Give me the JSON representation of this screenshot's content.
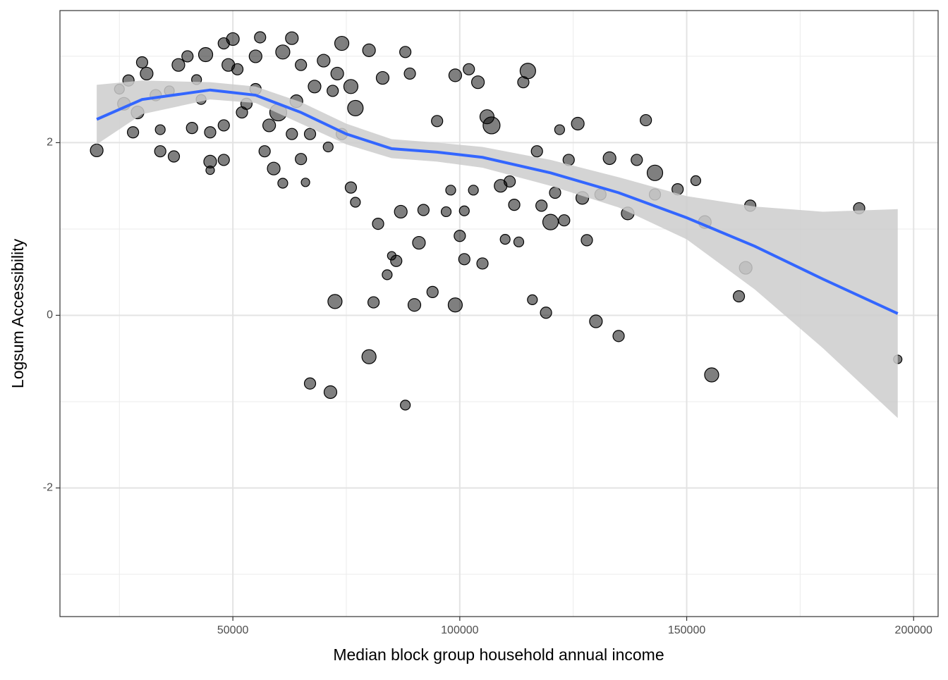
{
  "chart_data": {
    "type": "scatter",
    "x_label": "Median block group household annual income",
    "y_label": "Logsum Accessibility",
    "xlim": [
      11900,
      205400
    ],
    "ylim": [
      -3.49,
      3.53
    ],
    "xticks": [
      50000,
      100000,
      150000,
      200000
    ],
    "yticks": [
      -2,
      0,
      2
    ],
    "x_minor_grid": [
      25000,
      75000,
      125000,
      175000
    ],
    "y_minor_grid": [
      -3,
      -1,
      1,
      3
    ],
    "grid": true,
    "point_color": "#000000",
    "x": [
      20000,
      25000,
      26000,
      27000,
      28000,
      29000,
      30000,
      31000,
      33000,
      34000,
      34000,
      36000,
      37000,
      38000,
      40000,
      41000,
      42000,
      43000,
      44000,
      45000,
      45000,
      45000,
      48000,
      48000,
      48000,
      49000,
      50000,
      51000,
      52000,
      53000,
      55000,
      55000,
      56000,
      57000,
      58000,
      59000,
      60000,
      61000,
      61000,
      63000,
      63000,
      64000,
      65000,
      65000,
      66000,
      67000,
      68000,
      70000,
      71000,
      72000,
      73000,
      74000,
      74000,
      76000,
      77000,
      67000,
      71500,
      72500,
      76000,
      77000,
      80000,
      80000,
      81000,
      82000,
      83000,
      84000,
      85000,
      86000,
      87000,
      88000,
      88000,
      89000,
      90000,
      91000,
      92000,
      94000,
      95000,
      97000,
      98000,
      99000,
      99000,
      100000,
      101000,
      101000,
      102000,
      103000,
      104000,
      105000,
      106000,
      107000,
      109000,
      110000,
      111000,
      112000,
      113000,
      114000,
      115000,
      116000,
      117000,
      118000,
      119000,
      120000,
      121000,
      122000,
      123000,
      124000,
      126000,
      127000,
      128000,
      130000,
      131000,
      133000,
      135000,
      137000,
      139000,
      141000,
      143000,
      143000,
      148000,
      152000,
      154000,
      155500,
      161500,
      163000,
      164000,
      188000,
      196500
    ],
    "values": [
      1.91,
      2.62,
      2.45,
      2.72,
      2.12,
      2.35,
      2.93,
      2.8,
      2.55,
      2.15,
      1.9,
      2.6,
      1.84,
      2.9,
      3.0,
      2.17,
      2.73,
      2.5,
      3.02,
      1.78,
      2.12,
      1.68,
      2.2,
      1.8,
      3.15,
      2.9,
      3.2,
      2.85,
      2.35,
      2.45,
      3.0,
      2.62,
      3.22,
      1.9,
      2.2,
      1.7,
      2.35,
      3.05,
      1.53,
      3.21,
      2.1,
      2.48,
      1.81,
      2.9,
      1.54,
      2.1,
      2.65,
      2.95,
      1.95,
      2.6,
      2.8,
      2.1,
      3.15,
      2.65,
      2.4,
      -0.79,
      -0.89,
      0.16,
      1.48,
      1.31,
      3.07,
      -0.48,
      0.15,
      1.06,
      2.75,
      0.47,
      0.69,
      0.63,
      1.2,
      3.05,
      -1.04,
      2.8,
      0.12,
      0.84,
      1.22,
      0.27,
      2.25,
      1.2,
      1.45,
      2.78,
      0.12,
      0.92,
      0.65,
      1.21,
      2.85,
      1.45,
      2.7,
      0.6,
      2.3,
      2.2,
      1.5,
      0.88,
      1.55,
      1.28,
      0.85,
      2.7,
      2.83,
      0.18,
      1.9,
      1.27,
      0.03,
      1.08,
      1.42,
      2.15,
      1.1,
      1.8,
      2.22,
      1.36,
      0.87,
      -0.07,
      1.4,
      1.82,
      -0.24,
      1.18,
      1.8,
      2.26,
      1.65,
      1.4,
      1.46,
      1.56,
      1.08,
      -0.69,
      0.22,
      0.55,
      1.27,
      1.24,
      -0.51
    ],
    "sizes": [
      9,
      7,
      9,
      8,
      8,
      9,
      8,
      9,
      8,
      7,
      8,
      7,
      8,
      9,
      8,
      8,
      7,
      7,
      10,
      9,
      8,
      6,
      8,
      8,
      8,
      9,
      9,
      8,
      8,
      8,
      9,
      8,
      8,
      8,
      9,
      9,
      12,
      10,
      7,
      9,
      8,
      9,
      8,
      8,
      6,
      8,
      9,
      9,
      7,
      8,
      9,
      8,
      10,
      10,
      11,
      8,
      9,
      10,
      8,
      7,
      9,
      10,
      8,
      8,
      9,
      7,
      6,
      8,
      9,
      8,
      7,
      8,
      9,
      9,
      8,
      8,
      8,
      7,
      7,
      9,
      10,
      8,
      8,
      7,
      8,
      7,
      9,
      8,
      10,
      12,
      9,
      7,
      8,
      8,
      7,
      8,
      11,
      7,
      8,
      8,
      8,
      11,
      8,
      7,
      8,
      8,
      9,
      9,
      8,
      9,
      8,
      9,
      8,
      9,
      8,
      8,
      11,
      8,
      8,
      7,
      9,
      10,
      8,
      9,
      8,
      8,
      6
    ],
    "smooth": {
      "color": "#3366ff",
      "band_color": "#cccccc",
      "x": [
        20000,
        30000,
        45000,
        55000,
        65000,
        75000,
        85000,
        95000,
        105000,
        120000,
        135000,
        150000,
        165000,
        180000,
        196500
      ],
      "values": [
        2.27,
        2.5,
        2.61,
        2.55,
        2.35,
        2.1,
        1.93,
        1.89,
        1.83,
        1.65,
        1.42,
        1.13,
        0.8,
        0.42,
        0.02
      ],
      "lower": [
        1.98,
        2.33,
        2.5,
        2.46,
        2.22,
        1.98,
        1.82,
        1.78,
        1.71,
        1.5,
        1.25,
        0.88,
        0.3,
        -0.38,
        -1.19
      ],
      "upper": [
        2.67,
        2.72,
        2.7,
        2.65,
        2.47,
        2.22,
        2.04,
        2.0,
        1.95,
        1.8,
        1.6,
        1.38,
        1.26,
        1.2,
        1.23
      ]
    }
  }
}
